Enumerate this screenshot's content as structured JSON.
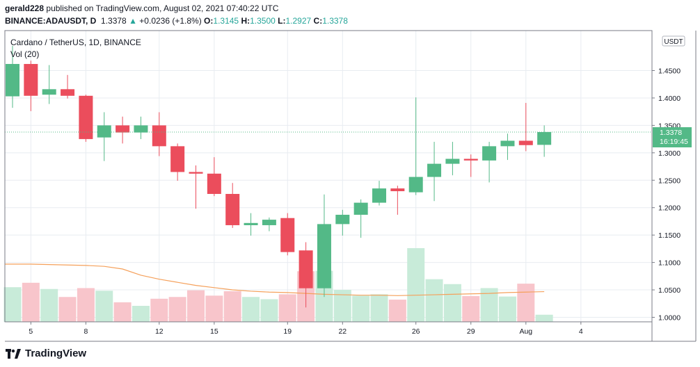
{
  "header": {
    "author": "gerald228",
    "published_text": "published on TradingView.com, August 02, 2021 07:40:22 UTC",
    "symbol": "BINANCE:ADAUSDT, D",
    "last": "1.3378",
    "change_arrow": "▲",
    "change": "+0.0236 (+1.8%)",
    "o_label": "O:",
    "o_val": "1.3145",
    "h_label": "H:",
    "h_val": "1.3500",
    "l_label": "L:",
    "l_val": "1.2927",
    "c_label": "C:",
    "c_val": "1.3378"
  },
  "legend": {
    "title": "Cardano / TetherUS, 1D, BINANCE",
    "vol": "Vol (20)"
  },
  "price_axis": {
    "currency_badge": "USDT",
    "last_price_label": "1.3378",
    "countdown": "16:19:45"
  },
  "footer": {
    "brand": "TradingView"
  },
  "colors": {
    "up": "#53b987",
    "down": "#eb4d5c",
    "up_vol": "#c8ebd9",
    "down_vol": "#f8c5cb",
    "ma": "#f5a05a",
    "grid": "#e8ecf1"
  },
  "chart_data": {
    "type": "candlestick",
    "ylim": [
      0.99,
      1.5
    ],
    "y_ticks": [
      "1.0000",
      "1.0500",
      "1.1000",
      "1.1500",
      "1.2000",
      "1.2500",
      "1.3000",
      "1.3500",
      "1.4000",
      "1.4500"
    ],
    "x_ticks": [
      {
        "label": "5",
        "i": 1
      },
      {
        "label": "8",
        "i": 4
      },
      {
        "label": "12",
        "i": 8
      },
      {
        "label": "15",
        "i": 11
      },
      {
        "label": "19",
        "i": 15
      },
      {
        "label": "22",
        "i": 18
      },
      {
        "label": "26",
        "i": 22
      },
      {
        "label": "29",
        "i": 25
      },
      {
        "label": "Aug",
        "i": 28
      },
      {
        "label": "4",
        "i": 31
      }
    ],
    "last_price": 1.3378,
    "candles": [
      {
        "o": 1.403,
        "h": 1.495,
        "l": 1.382,
        "c": 1.462
      },
      {
        "o": 1.462,
        "h": 1.468,
        "l": 1.376,
        "c": 1.404
      },
      {
        "o": 1.406,
        "h": 1.46,
        "l": 1.389,
        "c": 1.416
      },
      {
        "o": 1.416,
        "h": 1.442,
        "l": 1.399,
        "c": 1.404
      },
      {
        "o": 1.404,
        "h": 1.406,
        "l": 1.32,
        "c": 1.325
      },
      {
        "o": 1.328,
        "h": 1.374,
        "l": 1.285,
        "c": 1.35
      },
      {
        "o": 1.35,
        "h": 1.366,
        "l": 1.317,
        "c": 1.337
      },
      {
        "o": 1.337,
        "h": 1.366,
        "l": 1.325,
        "c": 1.35
      },
      {
        "o": 1.35,
        "h": 1.374,
        "l": 1.294,
        "c": 1.312
      },
      {
        "o": 1.312,
        "h": 1.317,
        "l": 1.249,
        "c": 1.265
      },
      {
        "o": 1.265,
        "h": 1.277,
        "l": 1.198,
        "c": 1.262
      },
      {
        "o": 1.262,
        "h": 1.292,
        "l": 1.221,
        "c": 1.225
      },
      {
        "o": 1.225,
        "h": 1.245,
        "l": 1.163,
        "c": 1.168
      },
      {
        "o": 1.168,
        "h": 1.19,
        "l": 1.149,
        "c": 1.172
      },
      {
        "o": 1.168,
        "h": 1.182,
        "l": 1.157,
        "c": 1.178
      },
      {
        "o": 1.181,
        "h": 1.19,
        "l": 1.113,
        "c": 1.119
      },
      {
        "o": 1.122,
        "h": 1.137,
        "l": 1.018,
        "c": 1.053
      },
      {
        "o": 1.053,
        "h": 1.224,
        "l": 1.037,
        "c": 1.17
      },
      {
        "o": 1.17,
        "h": 1.196,
        "l": 1.149,
        "c": 1.187
      },
      {
        "o": 1.187,
        "h": 1.215,
        "l": 1.145,
        "c": 1.209
      },
      {
        "o": 1.209,
        "h": 1.249,
        "l": 1.204,
        "c": 1.235
      },
      {
        "o": 1.235,
        "h": 1.24,
        "l": 1.187,
        "c": 1.23
      },
      {
        "o": 1.228,
        "h": 1.401,
        "l": 1.223,
        "c": 1.256
      },
      {
        "o": 1.256,
        "h": 1.32,
        "l": 1.212,
        "c": 1.28
      },
      {
        "o": 1.28,
        "h": 1.32,
        "l": 1.259,
        "c": 1.289
      },
      {
        "o": 1.289,
        "h": 1.297,
        "l": 1.256,
        "c": 1.286
      },
      {
        "o": 1.286,
        "h": 1.32,
        "l": 1.246,
        "c": 1.312
      },
      {
        "o": 1.312,
        "h": 1.335,
        "l": 1.287,
        "c": 1.322
      },
      {
        "o": 1.322,
        "h": 1.391,
        "l": 1.303,
        "c": 1.314
      },
      {
        "o": 1.3145,
        "h": 1.35,
        "l": 1.2927,
        "c": 1.3378
      }
    ],
    "volumes": [
      0.78,
      0.88,
      0.74,
      0.56,
      0.76,
      0.7,
      0.44,
      0.36,
      0.52,
      0.56,
      0.71,
      0.59,
      0.69,
      0.56,
      0.51,
      0.62,
      1.14,
      1.15,
      0.72,
      0.59,
      0.62,
      0.5,
      1.66,
      0.96,
      0.85,
      0.58,
      0.76,
      0.57,
      0.86,
      0.16
    ],
    "volume_max": 1.66,
    "vol_ma": [
      1.3,
      1.3,
      1.29,
      1.28,
      1.27,
      1.25,
      1.19,
      1.05,
      0.96,
      0.89,
      0.82,
      0.77,
      0.72,
      0.69,
      0.67,
      0.66,
      0.64,
      0.62,
      0.61,
      0.6,
      0.6,
      0.59,
      0.6,
      0.61,
      0.62,
      0.63,
      0.64,
      0.66,
      0.67,
      0.68
    ]
  }
}
